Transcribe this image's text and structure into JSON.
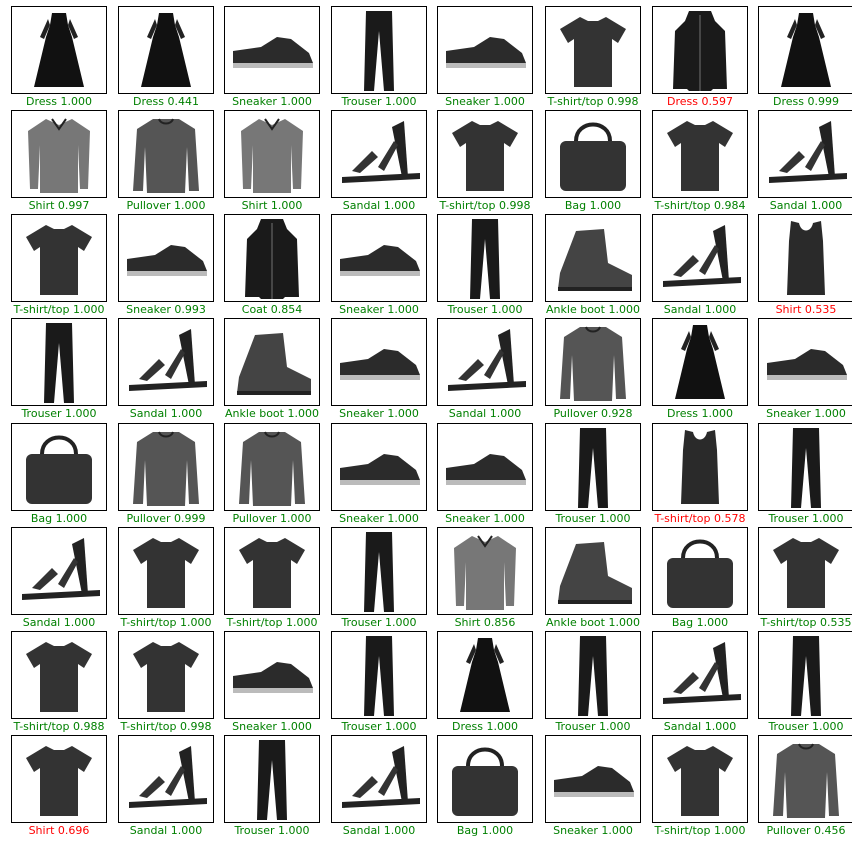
{
  "palette": {
    "correct": "#008000",
    "wrong": "#ff0000"
  },
  "rows": [
    [
      {
        "label": "Dress 1.000",
        "correct": true,
        "icon": "dress-icon"
      },
      {
        "label": "Dress 0.441",
        "correct": true,
        "icon": "dress-icon"
      },
      {
        "label": "Sneaker 1.000",
        "correct": true,
        "icon": "sneaker-icon"
      },
      {
        "label": "Trouser 1.000",
        "correct": true,
        "icon": "trouser-icon"
      },
      {
        "label": "Sneaker 1.000",
        "correct": true,
        "icon": "sneaker-icon"
      },
      {
        "label": "T-shirt/top 0.998",
        "correct": true,
        "icon": "tshirt-icon"
      },
      {
        "label": "Dress 0.597",
        "correct": false,
        "icon": "coat-icon"
      },
      {
        "label": "Dress 0.999",
        "correct": true,
        "icon": "dress-icon"
      }
    ],
    [
      {
        "label": "Shirt 0.997",
        "correct": true,
        "icon": "shirt-icon"
      },
      {
        "label": "Pullover 1.000",
        "correct": true,
        "icon": "pullover-icon"
      },
      {
        "label": "Shirt 1.000",
        "correct": true,
        "icon": "shirt-icon"
      },
      {
        "label": "Sandal 1.000",
        "correct": true,
        "icon": "sandal-icon"
      },
      {
        "label": "T-shirt/top 0.998",
        "correct": true,
        "icon": "tshirt-icon"
      },
      {
        "label": "Bag 1.000",
        "correct": true,
        "icon": "bag-icon"
      },
      {
        "label": "T-shirt/top 0.984",
        "correct": true,
        "icon": "tshirt-icon"
      },
      {
        "label": "Sandal 1.000",
        "correct": true,
        "icon": "sandal-icon"
      }
    ],
    [
      {
        "label": "T-shirt/top 1.000",
        "correct": true,
        "icon": "tshirt-icon"
      },
      {
        "label": "Sneaker 0.993",
        "correct": true,
        "icon": "sneaker-icon"
      },
      {
        "label": "Coat 0.854",
        "correct": true,
        "icon": "coat-icon"
      },
      {
        "label": "Sneaker 1.000",
        "correct": true,
        "icon": "sneaker-icon"
      },
      {
        "label": "Trouser 1.000",
        "correct": true,
        "icon": "trouser-icon"
      },
      {
        "label": "Ankle boot 1.000",
        "correct": true,
        "icon": "ankle-boot-icon"
      },
      {
        "label": "Sandal 1.000",
        "correct": true,
        "icon": "sandal-icon"
      },
      {
        "label": "Shirt 0.535",
        "correct": false,
        "icon": "tank-top-icon"
      }
    ],
    [
      {
        "label": "Trouser 1.000",
        "correct": true,
        "icon": "trouser-icon"
      },
      {
        "label": "Sandal 1.000",
        "correct": true,
        "icon": "sandal-icon"
      },
      {
        "label": "Ankle boot 1.000",
        "correct": true,
        "icon": "ankle-boot-icon"
      },
      {
        "label": "Sneaker 1.000",
        "correct": true,
        "icon": "sneaker-icon"
      },
      {
        "label": "Sandal 1.000",
        "correct": true,
        "icon": "sandal-icon"
      },
      {
        "label": "Pullover 0.928",
        "correct": true,
        "icon": "pullover-icon"
      },
      {
        "label": "Dress 1.000",
        "correct": true,
        "icon": "dress-icon"
      },
      {
        "label": "Sneaker 1.000",
        "correct": true,
        "icon": "sneaker-icon"
      }
    ],
    [
      {
        "label": "Bag 1.000",
        "correct": true,
        "icon": "bag-icon"
      },
      {
        "label": "Pullover 0.999",
        "correct": true,
        "icon": "pullover-icon"
      },
      {
        "label": "Pullover 1.000",
        "correct": true,
        "icon": "pullover-icon"
      },
      {
        "label": "Sneaker 1.000",
        "correct": true,
        "icon": "sneaker-icon"
      },
      {
        "label": "Sneaker 1.000",
        "correct": true,
        "icon": "sneaker-icon"
      },
      {
        "label": "Trouser 1.000",
        "correct": true,
        "icon": "trouser-icon"
      },
      {
        "label": "T-shirt/top 0.578",
        "correct": false,
        "icon": "tank-top-icon"
      },
      {
        "label": "Trouser 1.000",
        "correct": true,
        "icon": "trouser-icon"
      }
    ],
    [
      {
        "label": "Sandal 1.000",
        "correct": true,
        "icon": "sandal-icon"
      },
      {
        "label": "T-shirt/top 1.000",
        "correct": true,
        "icon": "tshirt-icon"
      },
      {
        "label": "T-shirt/top 1.000",
        "correct": true,
        "icon": "tshirt-icon"
      },
      {
        "label": "Trouser 1.000",
        "correct": true,
        "icon": "trouser-icon"
      },
      {
        "label": "Shirt 0.856",
        "correct": true,
        "icon": "shirt-icon"
      },
      {
        "label": "Ankle boot 1.000",
        "correct": true,
        "icon": "ankle-boot-icon"
      },
      {
        "label": "Bag 1.000",
        "correct": true,
        "icon": "bag-icon"
      },
      {
        "label": "T-shirt/top 0.535",
        "correct": true,
        "icon": "tshirt-icon"
      }
    ],
    [
      {
        "label": "T-shirt/top 0.988",
        "correct": true,
        "icon": "tshirt-icon"
      },
      {
        "label": "T-shirt/top 0.998",
        "correct": true,
        "icon": "tshirt-icon"
      },
      {
        "label": "Sneaker 1.000",
        "correct": true,
        "icon": "sneaker-icon"
      },
      {
        "label": "Trouser 1.000",
        "correct": true,
        "icon": "trouser-icon"
      },
      {
        "label": "Dress 1.000",
        "correct": true,
        "icon": "dress-icon"
      },
      {
        "label": "Trouser 1.000",
        "correct": true,
        "icon": "trouser-icon"
      },
      {
        "label": "Sandal 1.000",
        "correct": true,
        "icon": "sandal-icon"
      },
      {
        "label": "Trouser 1.000",
        "correct": true,
        "icon": "trouser-icon"
      }
    ],
    [
      {
        "label": "Shirt 0.696",
        "correct": false,
        "icon": "tshirt-icon"
      },
      {
        "label": "Sandal 1.000",
        "correct": true,
        "icon": "sandal-icon"
      },
      {
        "label": "Trouser 1.000",
        "correct": true,
        "icon": "trouser-icon"
      },
      {
        "label": "Sandal 1.000",
        "correct": true,
        "icon": "sandal-icon"
      },
      {
        "label": "Bag 1.000",
        "correct": true,
        "icon": "bag-icon"
      },
      {
        "label": "Sneaker 1.000",
        "correct": true,
        "icon": "sneaker-icon"
      },
      {
        "label": "T-shirt/top 1.000",
        "correct": true,
        "icon": "tshirt-icon"
      },
      {
        "label": "Pullover 0.456",
        "correct": true,
        "icon": "pullover-icon"
      }
    ]
  ]
}
